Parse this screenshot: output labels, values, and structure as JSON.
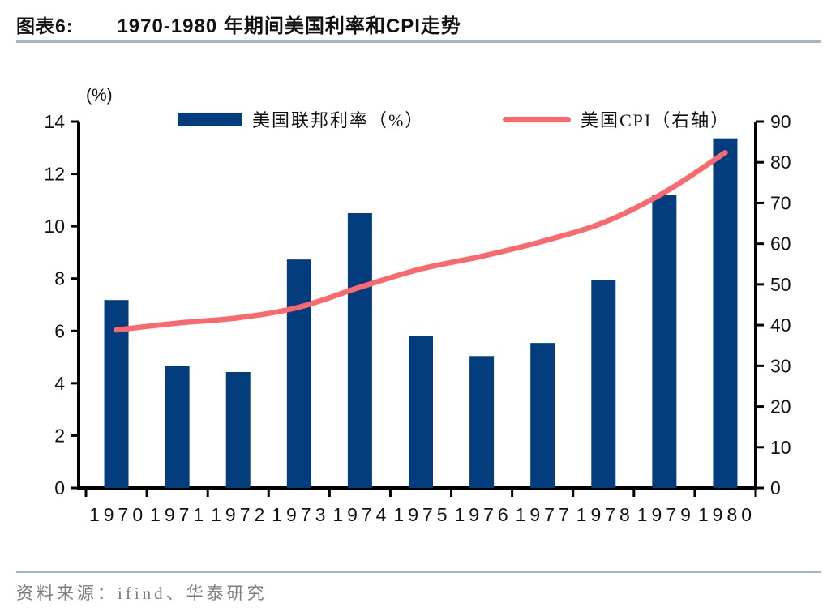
{
  "page": {
    "title_prefix": "图表6:",
    "title": "1970-1980 年期间美国利率和CPI走势",
    "source_label": "资料来源：ifind、华泰研究"
  },
  "colors": {
    "bar": "#043d7d",
    "line": "#fa696d",
    "axis": "#000000",
    "rule": "#a2b6c8",
    "source_text": "#7d7d7d"
  },
  "chart_data": {
    "type": "bar",
    "subtype": "bar+line dual axis",
    "title": "1970-1980 年期间美国利率和CPI走势",
    "categories": [
      "1970",
      "1971",
      "1972",
      "1973",
      "1974",
      "1975",
      "1976",
      "1977",
      "1978",
      "1979",
      "1980"
    ],
    "series": [
      {
        "name": "美国联邦利率（%）",
        "type": "bar",
        "axis": "left",
        "values": [
          7.18,
          4.66,
          4.43,
          8.73,
          10.5,
          5.82,
          5.04,
          5.54,
          7.93,
          11.19,
          13.36
        ]
      },
      {
        "name": "美国CPI（右轴）",
        "type": "line",
        "axis": "right",
        "values": [
          38.8,
          40.5,
          41.8,
          44.4,
          49.3,
          53.8,
          56.9,
          60.6,
          65.2,
          72.6,
          82.4
        ]
      }
    ],
    "left_axis": {
      "label": "(%)",
      "min": 0,
      "max": 14,
      "step": 2,
      "ticks": [
        "0",
        "2",
        "4",
        "6",
        "8",
        "10",
        "12",
        "14"
      ]
    },
    "right_axis": {
      "min": 0,
      "max": 90,
      "step": 10,
      "ticks": [
        "0",
        "10",
        "20",
        "30",
        "40",
        "50",
        "60",
        "70",
        "80",
        "90"
      ]
    },
    "legend_position": "top",
    "grid": false
  }
}
